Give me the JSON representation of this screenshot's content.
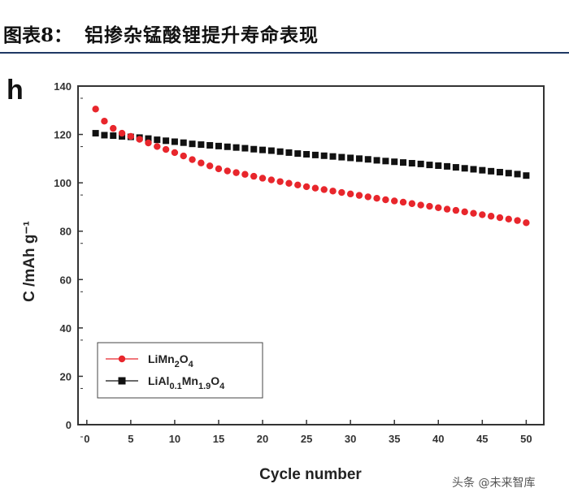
{
  "header": {
    "figure_label": "图表8：",
    "figure_title": "铝掺杂锰酸锂提升寿命表现"
  },
  "watermark": "头条 @未来智库",
  "chart_data": {
    "type": "scatter",
    "panel_label": "h",
    "xlabel": "Cycle number",
    "ylabel": "C /mAh g⁻¹",
    "xlim": [
      -1,
      52
    ],
    "ylim": [
      0,
      140
    ],
    "xticks": [
      0,
      5,
      10,
      15,
      20,
      25,
      30,
      35,
      40,
      45,
      50
    ],
    "yticks": [
      0,
      20,
      40,
      60,
      80,
      100,
      120,
      140
    ],
    "x": [
      1,
      2,
      3,
      4,
      5,
      6,
      7,
      8,
      9,
      10,
      11,
      12,
      13,
      14,
      15,
      16,
      17,
      18,
      19,
      20,
      21,
      22,
      23,
      24,
      25,
      26,
      27,
      28,
      29,
      30,
      31,
      32,
      33,
      34,
      35,
      36,
      37,
      38,
      39,
      40,
      41,
      42,
      43,
      44,
      45,
      46,
      47,
      48,
      49,
      50
    ],
    "series": [
      {
        "name": "LiMn2O4",
        "label_parts": [
          "LiMn",
          "2",
          "O",
          "4"
        ],
        "color": "#e8262c",
        "marker": "circle",
        "values": [
          130.5,
          125.5,
          122.5,
          120.5,
          119.2,
          118.0,
          116.5,
          115.0,
          113.8,
          112.5,
          111.1,
          109.6,
          108.2,
          107.0,
          105.8,
          104.9,
          104.2,
          103.5,
          102.7,
          101.9,
          101.2,
          100.5,
          99.8,
          99.1,
          98.4,
          97.8,
          97.2,
          96.6,
          96.0,
          95.4,
          94.8,
          94.2,
          93.6,
          93.0,
          92.5,
          92.0,
          91.4,
          90.8,
          90.3,
          89.7,
          89.1,
          88.6,
          88.0,
          87.4,
          86.8,
          86.2,
          85.6,
          85.0,
          84.4,
          83.5
        ]
      },
      {
        "name": "LiAl0.1Mn1.9O4",
        "label_parts": [
          "LiAl",
          "0.1",
          "Mn",
          "1.9",
          "O",
          "4"
        ],
        "color": "#111111",
        "marker": "square",
        "values": [
          120.5,
          119.7,
          119.5,
          119.2,
          119.0,
          118.7,
          118.3,
          117.8,
          117.4,
          117.0,
          116.6,
          116.1,
          115.8,
          115.5,
          115.2,
          114.9,
          114.6,
          114.3,
          113.9,
          113.6,
          113.3,
          112.9,
          112.5,
          112.1,
          111.8,
          111.5,
          111.2,
          110.9,
          110.6,
          110.3,
          110.0,
          109.7,
          109.3,
          109.0,
          108.7,
          108.4,
          108.1,
          107.8,
          107.4,
          107.1,
          106.8,
          106.4,
          106.0,
          105.6,
          105.2,
          104.8,
          104.4,
          104.0,
          103.6,
          103.0
        ]
      }
    ],
    "legend_position": "bottom-left"
  }
}
